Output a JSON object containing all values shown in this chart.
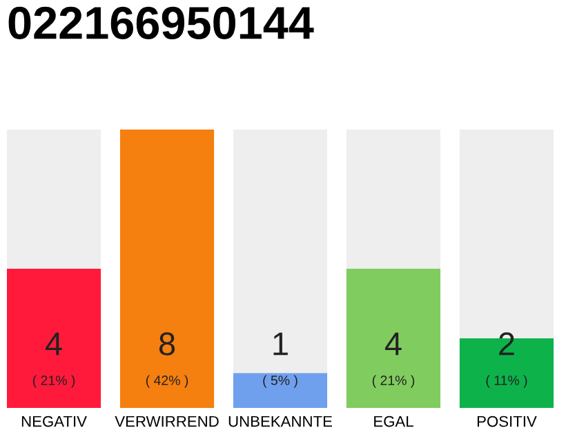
{
  "chart_data": {
    "type": "bar",
    "title": "022166950144",
    "categories": [
      "NEGATIV",
      "VERWIRREND",
      "UNBEKANNTE",
      "EGAL",
      "POSITIV"
    ],
    "values": [
      4,
      8,
      1,
      4,
      2
    ],
    "colors": [
      "#ff1a3c",
      "#f57f0f",
      "#6fa0ee",
      "#80cc5e",
      "#0db24b"
    ],
    "ylim": [
      0,
      8
    ],
    "data_labels": true,
    "annotations": [
      "( 21% )",
      "( 42% )",
      "( 5% )",
      "( 21% )",
      "( 11% )"
    ],
    "grid": false,
    "legend": false
  }
}
